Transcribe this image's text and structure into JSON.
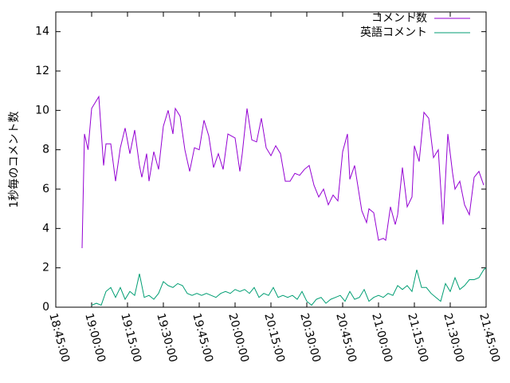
{
  "chart_data": {
    "type": "line",
    "title": "",
    "xlabel": "",
    "ylabel": "1秒毎のコメント数",
    "xlim": [
      "18:45:00",
      "21:45:00"
    ],
    "ylim": [
      0,
      15
    ],
    "grid": false,
    "legend_position": "top-right",
    "x_ticks": [
      "18:45:00",
      "19:00:00",
      "19:15:00",
      "19:30:00",
      "19:45:00",
      "20:00:00",
      "20:15:00",
      "20:30:00",
      "20:45:00",
      "21:00:00",
      "21:15:00",
      "21:30:00",
      "21:45:00"
    ],
    "y_ticks": [
      0,
      2,
      4,
      6,
      8,
      10,
      12,
      14
    ],
    "series": [
      {
        "name": "コメント数",
        "color": "#9400d3",
        "x": [
          "18:56:00",
          "18:57:00",
          "18:58:30",
          "19:00:00",
          "19:03:00",
          "19:05:00",
          "19:06:00",
          "19:08:00",
          "19:10:00",
          "19:12:00",
          "19:14:00",
          "19:16:00",
          "19:18:00",
          "19:20:00",
          "19:21:00",
          "19:23:00",
          "19:24:00",
          "19:26:00",
          "19:28:00",
          "19:30:00",
          "19:32:00",
          "19:34:00",
          "19:35:00",
          "19:37:00",
          "19:39:00",
          "19:41:00",
          "19:43:00",
          "19:45:00",
          "19:47:00",
          "19:49:00",
          "19:51:00",
          "19:53:00",
          "19:55:00",
          "19:57:00",
          "20:00:00",
          "20:02:00",
          "20:03:00",
          "20:05:00",
          "20:07:00",
          "20:09:00",
          "20:11:00",
          "20:13:00",
          "20:15:00",
          "20:17:00",
          "20:19:00",
          "20:21:00",
          "20:23:00",
          "20:25:00",
          "20:27:00",
          "20:29:00",
          "20:31:00",
          "20:33:00",
          "20:35:00",
          "20:37:00",
          "20:39:00",
          "20:41:00",
          "20:43:00",
          "20:45:00",
          "20:47:00",
          "20:48:00",
          "20:50:00",
          "20:53:00",
          "20:55:00",
          "20:56:00",
          "20:58:00",
          "21:00:00",
          "21:02:00",
          "21:03:00",
          "21:05:00",
          "21:07:00",
          "21:08:00",
          "21:10:00",
          "21:12:00",
          "21:14:00",
          "21:15:00",
          "21:17:00",
          "21:19:00",
          "21:21:00",
          "21:23:00",
          "21:25:00",
          "21:27:00",
          "21:29:00",
          "21:31:00",
          "21:32:00",
          "21:34:00",
          "21:36:00",
          "21:38:00",
          "21:40:00",
          "21:42:00",
          "21:44:00"
        ],
        "values": [
          3.0,
          8.8,
          8.0,
          10.1,
          10.7,
          7.2,
          8.3,
          8.3,
          6.4,
          8.1,
          9.1,
          7.8,
          9.0,
          7.2,
          6.6,
          7.8,
          6.4,
          7.9,
          7.0,
          9.2,
          10.0,
          8.8,
          10.1,
          9.7,
          8.0,
          6.9,
          8.1,
          8.0,
          9.5,
          8.7,
          7.1,
          7.8,
          7.0,
          8.8,
          8.6,
          6.9,
          7.8,
          10.1,
          8.5,
          8.4,
          9.6,
          8.1,
          7.7,
          8.2,
          7.8,
          6.4,
          6.4,
          6.8,
          6.7,
          7.0,
          7.2,
          6.2,
          5.6,
          6.0,
          5.2,
          5.7,
          5.4,
          7.9,
          8.8,
          6.5,
          7.2,
          4.9,
          4.3,
          5.0,
          4.8,
          3.4,
          3.5,
          3.4,
          5.1,
          4.2,
          4.7,
          7.1,
          5.1,
          5.6,
          8.2,
          7.4,
          9.9,
          9.6,
          7.6,
          8.0,
          4.2,
          8.8,
          6.8,
          6.0,
          6.4,
          5.2,
          4.7,
          6.6,
          6.9,
          6.2
        ]
      },
      {
        "name": "英語コメント",
        "color": "#009e73",
        "x": [
          "19:00:00",
          "19:02:00",
          "19:04:00",
          "19:06:00",
          "19:08:00",
          "19:10:00",
          "19:12:00",
          "19:14:00",
          "19:16:00",
          "19:18:00",
          "19:20:00",
          "19:22:00",
          "19:24:00",
          "19:26:00",
          "19:28:00",
          "19:30:00",
          "19:32:00",
          "19:34:00",
          "19:36:00",
          "19:38:00",
          "19:40:00",
          "19:42:00",
          "19:44:00",
          "19:46:00",
          "19:48:00",
          "19:50:00",
          "19:52:00",
          "19:54:00",
          "19:56:00",
          "19:58:00",
          "20:00:00",
          "20:02:00",
          "20:04:00",
          "20:06:00",
          "20:08:00",
          "20:10:00",
          "20:12:00",
          "20:14:00",
          "20:16:00",
          "20:18:00",
          "20:20:00",
          "20:22:00",
          "20:24:00",
          "20:26:00",
          "20:28:00",
          "20:30:00",
          "20:32:00",
          "20:34:00",
          "20:36:00",
          "20:38:00",
          "20:40:00",
          "20:42:00",
          "20:44:00",
          "20:46:00",
          "20:48:00",
          "20:50:00",
          "20:52:00",
          "20:54:00",
          "20:56:00",
          "20:58:00",
          "21:00:00",
          "21:02:00",
          "21:04:00",
          "21:06:00",
          "21:08:00",
          "21:10:00",
          "21:12:00",
          "21:14:00",
          "21:16:00",
          "21:18:00",
          "21:20:00",
          "21:22:00",
          "21:24:00",
          "21:26:00",
          "21:28:00",
          "21:30:00",
          "21:32:00",
          "21:34:00",
          "21:36:00",
          "21:38:00",
          "21:40:00",
          "21:42:00",
          "21:44:00",
          "21:45:00"
        ],
        "values": [
          0.1,
          0.2,
          0.1,
          0.8,
          1.0,
          0.5,
          1.0,
          0.4,
          0.8,
          0.6,
          1.7,
          0.5,
          0.6,
          0.4,
          0.7,
          1.3,
          1.1,
          1.0,
          1.2,
          1.1,
          0.7,
          0.6,
          0.7,
          0.6,
          0.7,
          0.6,
          0.5,
          0.7,
          0.8,
          0.7,
          0.9,
          0.8,
          0.9,
          0.7,
          1.0,
          0.5,
          0.7,
          0.6,
          1.0,
          0.5,
          0.6,
          0.5,
          0.6,
          0.4,
          0.8,
          0.3,
          0.1,
          0.4,
          0.5,
          0.2,
          0.4,
          0.5,
          0.6,
          0.3,
          0.8,
          0.4,
          0.5,
          0.9,
          0.3,
          0.5,
          0.6,
          0.5,
          0.7,
          0.6,
          1.1,
          0.9,
          1.1,
          0.8,
          1.9,
          1.0,
          1.0,
          0.7,
          0.5,
          0.3,
          1.2,
          0.8,
          1.5,
          0.9,
          1.1,
          1.4,
          1.4,
          1.5,
          1.9,
          2.0
        ]
      }
    ]
  }
}
